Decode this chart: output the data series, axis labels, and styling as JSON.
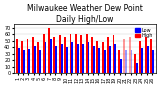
{
  "title": "Milwaukee Weather Dew Point\nDaily High/Low",
  "ylabel": "",
  "xlabel": "",
  "bar_width": 0.35,
  "background_color": "#ffffff",
  "high_color": "#ff0000",
  "low_color": "#0000ff",
  "dotted_color": "#aaaaff",
  "ylim": [
    0,
    75
  ],
  "yticks": [
    0,
    10,
    20,
    30,
    40,
    50,
    60,
    70
  ],
  "categories": [
    "1",
    "2",
    "3",
    "4",
    "5",
    "6",
    "7",
    "8",
    "9",
    "10",
    "11",
    "12",
    "13",
    "14",
    "15",
    "16",
    "17",
    "18",
    "19",
    "20",
    "21",
    "22",
    "23",
    "24",
    "25",
    "26"
  ],
  "high_values": [
    52,
    50,
    52,
    55,
    48,
    60,
    70,
    55,
    58,
    55,
    60,
    60,
    58,
    60,
    55,
    50,
    48,
    55,
    58,
    35,
    52,
    55,
    30,
    50,
    55,
    52
  ],
  "low_values": [
    38,
    35,
    37,
    42,
    35,
    48,
    52,
    42,
    45,
    40,
    48,
    45,
    45,
    48,
    42,
    38,
    35,
    42,
    45,
    22,
    35,
    35,
    15,
    38,
    42,
    35
  ],
  "dotted_indices": [
    20,
    21
  ],
  "legend_high": "High",
  "legend_low": "Low",
  "title_fontsize": 5.5,
  "tick_fontsize": 3.5,
  "legend_fontsize": 3.5
}
